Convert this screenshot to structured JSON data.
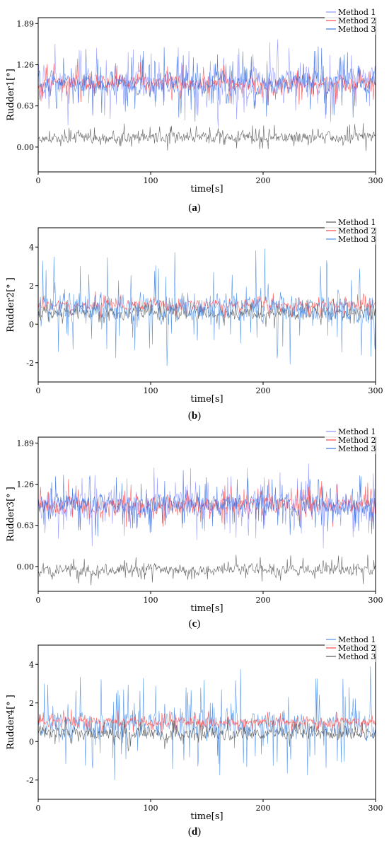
{
  "chart_data": [
    {
      "type": "line",
      "caption_letter": "a",
      "xlabel": "time[s]",
      "ylabel": "Rudder1[°]",
      "xlim": [
        0,
        300
      ],
      "ylim": [
        -0.38,
        1.98
      ],
      "xticks": [
        0,
        100,
        200,
        300
      ],
      "yticks": [
        0.0,
        0.63,
        1.26,
        1.89
      ],
      "ytick_labels": [
        "0.00",
        "0.63",
        "1.26",
        "1.89"
      ],
      "legend_position": "top-right",
      "series": [
        {
          "name": "Method 1",
          "color": "#8f95ff",
          "mean": 1.0,
          "amp": 0.3,
          "spike": 0.55,
          "seed": 11
        },
        {
          "name": "Method 2",
          "color": "#ff4b4b",
          "mean": 0.98,
          "amp": 0.15,
          "spike": 0.3,
          "seed": 12
        },
        {
          "name": "Method 3",
          "color": "#3b73e0",
          "mean": 0.98,
          "amp": 0.25,
          "spike": 0.45,
          "seed": 13
        },
        {
          "name": "",
          "color": "#555555",
          "mean": 0.15,
          "amp": 0.12,
          "spike": 0.18,
          "seed": 14
        }
      ]
    },
    {
      "type": "line",
      "caption_letter": "b",
      "xlabel": "time[s]",
      "ylabel": "Rudder2[° ]",
      "xlim": [
        0,
        300
      ],
      "ylim": [
        -3,
        5
      ],
      "xticks": [
        0,
        100,
        200,
        300
      ],
      "yticks": [
        -2,
        0,
        2,
        4
      ],
      "ytick_labels": [
        "-2",
        "0",
        "2",
        "4"
      ],
      "legend_position": "top-right",
      "series": [
        {
          "name": "Method 1",
          "color": "#555555",
          "mean": 0.6,
          "amp": 0.45,
          "spike": 0.6,
          "seed": 21
        },
        {
          "name": "Method 2",
          "color": "#ff4b4b",
          "mean": 1.0,
          "amp": 0.35,
          "spike": 0.5,
          "seed": 22
        },
        {
          "name": "Method 3",
          "color": "#4a8ee8",
          "mean": 0.9,
          "amp": 1.1,
          "spike": 2.6,
          "seed": 23
        }
      ]
    },
    {
      "type": "line",
      "caption_letter": "c",
      "xlabel": "time[s]",
      "ylabel": "Rudder3[° ]",
      "xlim": [
        0,
        300
      ],
      "ylim": [
        -0.38,
        1.98
      ],
      "xticks": [
        0,
        100,
        200,
        300
      ],
      "yticks": [
        0.0,
        0.63,
        1.26,
        1.89
      ],
      "ytick_labels": [
        "0.00",
        "0.63",
        "1.26",
        "1.89"
      ],
      "legend_position": "top-right",
      "series": [
        {
          "name": "Method 1",
          "color": "#8f95ff",
          "mean": 0.95,
          "amp": 0.28,
          "spike": 0.5,
          "seed": 31
        },
        {
          "name": "Method 2",
          "color": "#ff4b4b",
          "mean": 0.95,
          "amp": 0.18,
          "spike": 0.3,
          "seed": 32
        },
        {
          "name": "Method 3",
          "color": "#3b73e0",
          "mean": 0.93,
          "amp": 0.22,
          "spike": 0.45,
          "seed": 33
        },
        {
          "name": "",
          "color": "#555555",
          "mean": -0.05,
          "amp": 0.12,
          "spike": 0.18,
          "seed": 34
        }
      ]
    },
    {
      "type": "line",
      "caption_letter": "d",
      "xlabel": "time[s]",
      "ylabel": "Rudder4[° ]",
      "xlim": [
        0,
        300
      ],
      "ylim": [
        -3,
        5
      ],
      "xticks": [
        0,
        100,
        200,
        300
      ],
      "yticks": [
        -2,
        0,
        2,
        4
      ],
      "ytick_labels": [
        "-2",
        "0",
        "2",
        "4"
      ],
      "legend_position": "top-right",
      "series": [
        {
          "name": "Method 1",
          "color": "#4a8ee8",
          "mean": 0.9,
          "amp": 1.0,
          "spike": 2.5,
          "seed": 41
        },
        {
          "name": "Method 2",
          "color": "#ff4b4b",
          "mean": 1.0,
          "amp": 0.35,
          "spike": 0.5,
          "seed": 42
        },
        {
          "name": "Method 3",
          "color": "#555555",
          "mean": 0.4,
          "amp": 0.45,
          "spike": 0.6,
          "seed": 43
        }
      ]
    }
  ]
}
